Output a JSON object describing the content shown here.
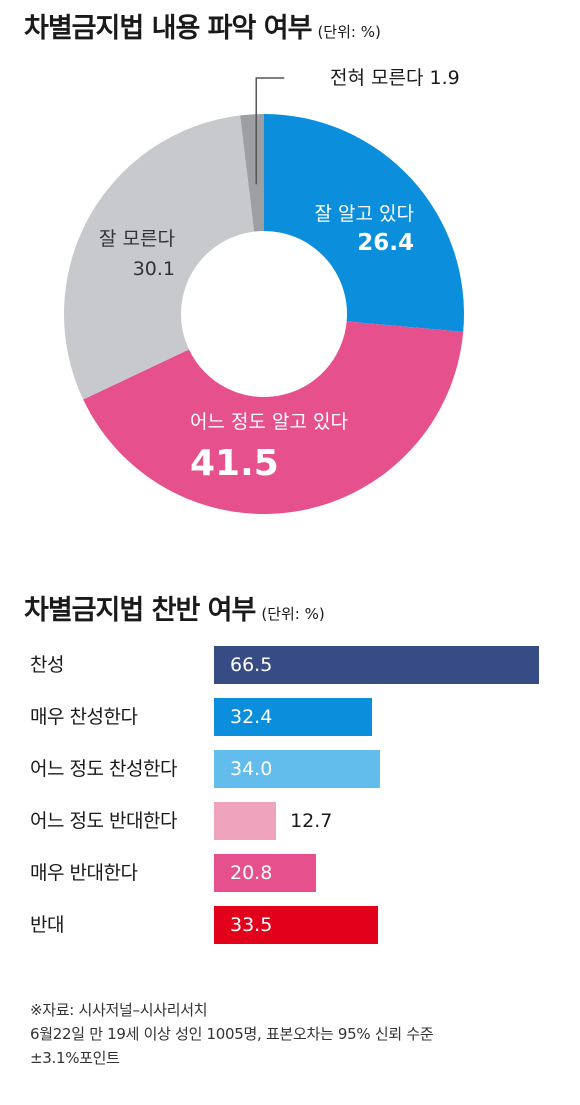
{
  "chart_data": [
    {
      "type": "pie",
      "title": "차별금지법 내용 파악 여부",
      "unit": "(단위: %)",
      "slices": [
        {
          "label": "잘 알고 있다",
          "value": 26.4,
          "value_text": "26.4",
          "color": "#0b8fdc"
        },
        {
          "label": "어느 정도 알고 있다",
          "value": 41.5,
          "value_text": "41.5",
          "color": "#e6508c"
        },
        {
          "label": "잘 모른다",
          "value": 30.1,
          "value_text": "30.1",
          "color": "#c8c9cc"
        },
        {
          "label": "전혀 모른다",
          "value": 1.9,
          "value_text": "1.9",
          "color": "#9d9fa3"
        }
      ]
    },
    {
      "type": "bar",
      "title": "차별금지법 찬반 여부",
      "unit": "(단위: %)",
      "categories": [
        "찬성",
        "매우 찬성한다",
        "어느 정도 찬성한다",
        "어느 정도 반대한다",
        "매우 반대한다",
        "반대"
      ],
      "values": [
        66.5,
        32.4,
        34.0,
        12.7,
        20.8,
        33.5
      ],
      "value_texts": [
        "66.5",
        "32.4",
        "34.0",
        "12.7",
        "20.8",
        "33.5"
      ],
      "colors": [
        "#374b85",
        "#0b8fdc",
        "#62bdec",
        "#f0a3bd",
        "#e6508c",
        "#e3001b"
      ],
      "xlim": [
        0,
        66.5
      ]
    }
  ],
  "source": [
    "※자료: 시사저널–시사리서치",
    "6월22일 만 19세 이상 성인 1005명, 표본오차는 95% 신뢰 수준",
    "±3.1%포인트"
  ]
}
